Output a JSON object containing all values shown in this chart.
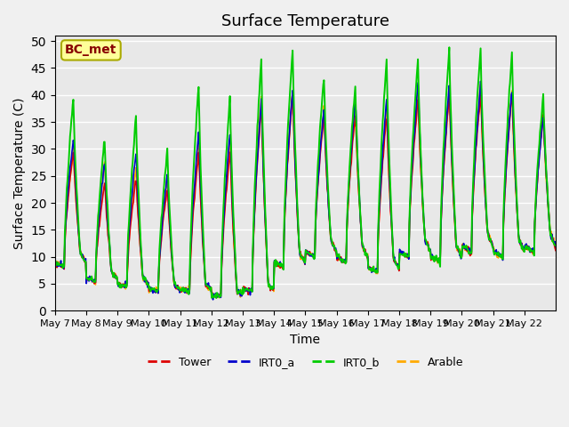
{
  "title": "Surface Temperature",
  "xlabel": "Time",
  "ylabel": "Surface Temperature (C)",
  "ylim": [
    0,
    51
  ],
  "yticks": [
    0,
    5,
    10,
    15,
    20,
    25,
    30,
    35,
    40,
    45,
    50
  ],
  "legend_labels": [
    "Tower",
    "IRT0_a",
    "IRT0_b",
    "Arable"
  ],
  "legend_colors": [
    "#dd0000",
    "#0000cc",
    "#00cc00",
    "#ffaa00"
  ],
  "annotation_text": "BC_met",
  "annotation_bg": "#ffff99",
  "annotation_border": "#aaaa00",
  "annotation_text_color": "#880000",
  "bg_color": "#e8e8e8",
  "grid_color": "#ffffff",
  "x_tick_labels": [
    "May 7",
    "May 8",
    "May 9",
    "May 10",
    "May 11",
    "May 12",
    "May 13",
    "May 14",
    "May 15",
    "May 16",
    "May 17",
    "May 18",
    "May 19",
    "May 20",
    "May 21",
    "May 22"
  ],
  "n_days": 16,
  "points_per_day": 48,
  "day_peaks_green": [
    39.5,
    32,
    36,
    30,
    42,
    40,
    47,
    49,
    44,
    42,
    47,
    47,
    49,
    49,
    48,
    40
  ],
  "day_peaks_red": [
    30,
    24,
    25,
    23,
    30,
    30,
    39,
    41,
    37,
    37,
    37,
    40,
    41,
    41,
    41,
    37
  ],
  "day_peaks_blue": [
    33,
    28,
    30,
    26,
    34,
    34,
    40,
    42,
    38,
    40,
    40,
    43,
    43,
    43,
    42,
    37
  ],
  "day_peaks_orange": [
    30,
    28,
    27,
    25,
    32,
    32,
    40,
    41,
    38,
    38,
    38,
    41,
    41,
    42,
    41,
    37
  ],
  "day_mins_all": [
    9,
    6,
    5,
    4,
    4,
    3,
    4,
    9,
    11,
    10,
    8,
    11,
    10,
    12,
    11,
    12
  ]
}
